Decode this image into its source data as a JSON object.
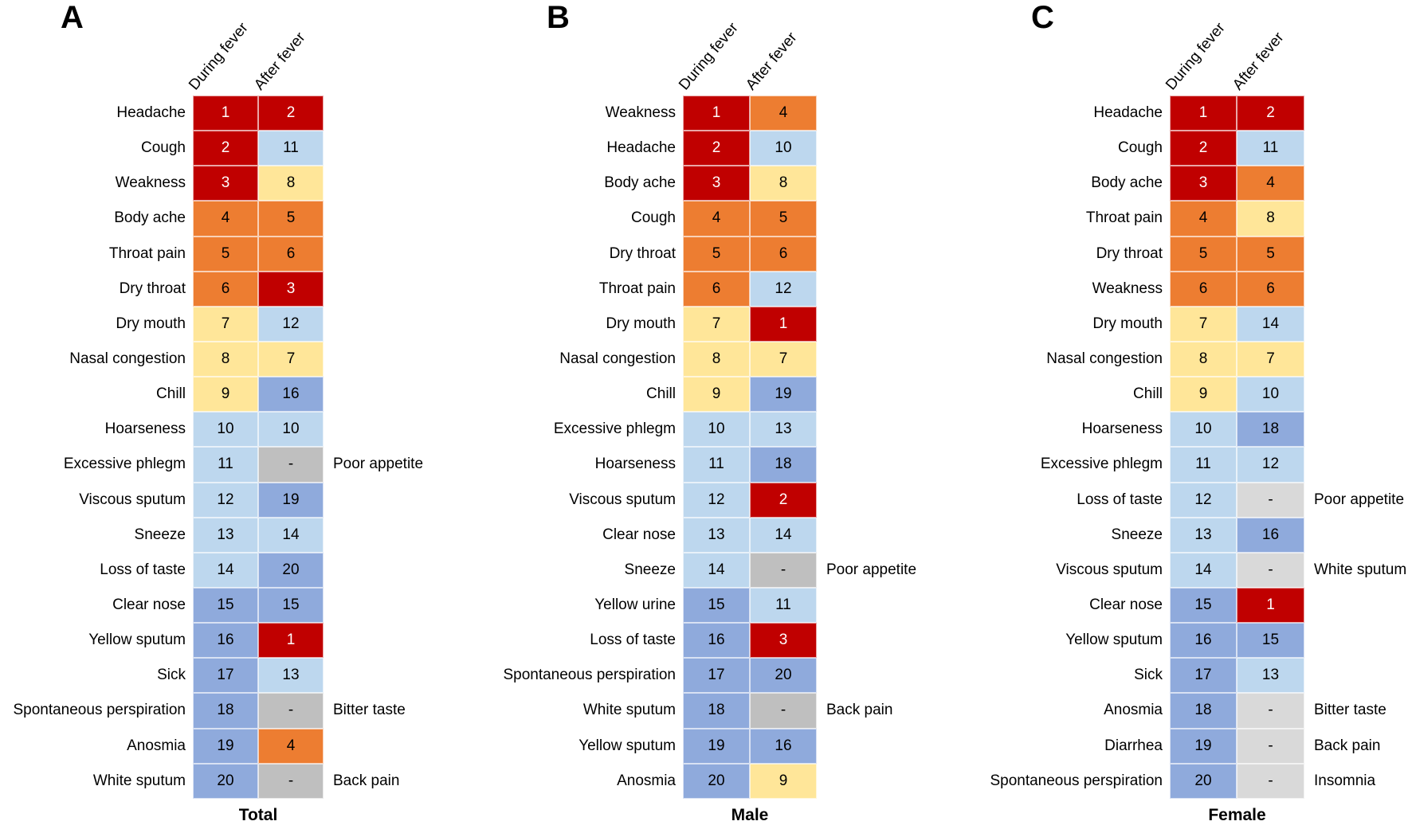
{
  "chart_data": {
    "type": "heatmap",
    "title": "",
    "columns": [
      "During fever",
      "After fever"
    ],
    "legend_position": "none",
    "grid": false,
    "color_key_hex": {
      "red": "#C00000",
      "orange": "#ED7D31",
      "yellow": "#FFE699",
      "light_blue": "#BDD7EE",
      "medium_blue": "#8FAADC",
      "gray": "#BFBFBF",
      "light_gray": "#D9D9D9"
    },
    "panels": [
      {
        "letter": "A",
        "caption": "Total",
        "rows": [
          {
            "symptom": "Headache",
            "during": {
              "rank": 1,
              "color": "red"
            },
            "after": {
              "rank": 2,
              "color": "red"
            },
            "annotation": ""
          },
          {
            "symptom": "Cough",
            "during": {
              "rank": 2,
              "color": "red"
            },
            "after": {
              "rank": 11,
              "color": "light_blue"
            },
            "annotation": ""
          },
          {
            "symptom": "Weakness",
            "during": {
              "rank": 3,
              "color": "red"
            },
            "after": {
              "rank": 8,
              "color": "yellow"
            },
            "annotation": ""
          },
          {
            "symptom": "Body ache",
            "during": {
              "rank": 4,
              "color": "orange"
            },
            "after": {
              "rank": 5,
              "color": "orange"
            },
            "annotation": ""
          },
          {
            "symptom": "Throat pain",
            "during": {
              "rank": 5,
              "color": "orange"
            },
            "after": {
              "rank": 6,
              "color": "orange"
            },
            "annotation": ""
          },
          {
            "symptom": "Dry throat",
            "during": {
              "rank": 6,
              "color": "orange"
            },
            "after": {
              "rank": 3,
              "color": "red"
            },
            "annotation": ""
          },
          {
            "symptom": "Dry mouth",
            "during": {
              "rank": 7,
              "color": "yellow"
            },
            "after": {
              "rank": 12,
              "color": "light_blue"
            },
            "annotation": ""
          },
          {
            "symptom": "Nasal congestion",
            "during": {
              "rank": 8,
              "color": "yellow"
            },
            "after": {
              "rank": 7,
              "color": "yellow"
            },
            "annotation": ""
          },
          {
            "symptom": "Chill",
            "during": {
              "rank": 9,
              "color": "yellow"
            },
            "after": {
              "rank": 16,
              "color": "medium_blue"
            },
            "annotation": ""
          },
          {
            "symptom": "Hoarseness",
            "during": {
              "rank": 10,
              "color": "light_blue"
            },
            "after": {
              "rank": 10,
              "color": "light_blue"
            },
            "annotation": ""
          },
          {
            "symptom": "Excessive phlegm",
            "during": {
              "rank": 11,
              "color": "light_blue"
            },
            "after": {
              "rank": "-",
              "color": "gray"
            },
            "annotation": "Poor appetite"
          },
          {
            "symptom": "Viscous sputum",
            "during": {
              "rank": 12,
              "color": "light_blue"
            },
            "after": {
              "rank": 19,
              "color": "medium_blue"
            },
            "annotation": ""
          },
          {
            "symptom": "Sneeze",
            "during": {
              "rank": 13,
              "color": "light_blue"
            },
            "after": {
              "rank": 14,
              "color": "light_blue"
            },
            "annotation": ""
          },
          {
            "symptom": "Loss of taste",
            "during": {
              "rank": 14,
              "color": "light_blue"
            },
            "after": {
              "rank": 20,
              "color": "medium_blue"
            },
            "annotation": ""
          },
          {
            "symptom": "Clear nose",
            "during": {
              "rank": 15,
              "color": "medium_blue"
            },
            "after": {
              "rank": 15,
              "color": "medium_blue"
            },
            "annotation": ""
          },
          {
            "symptom": "Yellow sputum",
            "during": {
              "rank": 16,
              "color": "medium_blue"
            },
            "after": {
              "rank": 1,
              "color": "red"
            },
            "annotation": ""
          },
          {
            "symptom": "Sick",
            "during": {
              "rank": 17,
              "color": "medium_blue"
            },
            "after": {
              "rank": 13,
              "color": "light_blue"
            },
            "annotation": ""
          },
          {
            "symptom": "Spontaneous perspiration",
            "during": {
              "rank": 18,
              "color": "medium_blue"
            },
            "after": {
              "rank": "-",
              "color": "gray"
            },
            "annotation": "Bitter taste"
          },
          {
            "symptom": "Anosmia",
            "during": {
              "rank": 19,
              "color": "medium_blue"
            },
            "after": {
              "rank": 4,
              "color": "orange"
            },
            "annotation": ""
          },
          {
            "symptom": "White sputum",
            "during": {
              "rank": 20,
              "color": "medium_blue"
            },
            "after": {
              "rank": "-",
              "color": "gray"
            },
            "annotation": "Back pain"
          }
        ]
      },
      {
        "letter": "B",
        "caption": "Male",
        "rows": [
          {
            "symptom": "Weakness",
            "during": {
              "rank": 1,
              "color": "red"
            },
            "after": {
              "rank": 4,
              "color": "orange"
            },
            "annotation": ""
          },
          {
            "symptom": "Headache",
            "during": {
              "rank": 2,
              "color": "red"
            },
            "after": {
              "rank": 10,
              "color": "light_blue"
            },
            "annotation": ""
          },
          {
            "symptom": "Body ache",
            "during": {
              "rank": 3,
              "color": "red"
            },
            "after": {
              "rank": 8,
              "color": "yellow"
            },
            "annotation": ""
          },
          {
            "symptom": "Cough",
            "during": {
              "rank": 4,
              "color": "orange"
            },
            "after": {
              "rank": 5,
              "color": "orange"
            },
            "annotation": ""
          },
          {
            "symptom": "Dry throat",
            "during": {
              "rank": 5,
              "color": "orange"
            },
            "after": {
              "rank": 6,
              "color": "orange"
            },
            "annotation": ""
          },
          {
            "symptom": "Throat pain",
            "during": {
              "rank": 6,
              "color": "orange"
            },
            "after": {
              "rank": 12,
              "color": "light_blue"
            },
            "annotation": ""
          },
          {
            "symptom": "Dry mouth",
            "during": {
              "rank": 7,
              "color": "yellow"
            },
            "after": {
              "rank": 1,
              "color": "red"
            },
            "annotation": ""
          },
          {
            "symptom": "Nasal congestion",
            "during": {
              "rank": 8,
              "color": "yellow"
            },
            "after": {
              "rank": 7,
              "color": "yellow"
            },
            "annotation": ""
          },
          {
            "symptom": "Chill",
            "during": {
              "rank": 9,
              "color": "yellow"
            },
            "after": {
              "rank": 19,
              "color": "medium_blue"
            },
            "annotation": ""
          },
          {
            "symptom": "Excessive phlegm",
            "during": {
              "rank": 10,
              "color": "light_blue"
            },
            "after": {
              "rank": 13,
              "color": "light_blue"
            },
            "annotation": ""
          },
          {
            "symptom": "Hoarseness",
            "during": {
              "rank": 11,
              "color": "light_blue"
            },
            "after": {
              "rank": 18,
              "color": "medium_blue"
            },
            "annotation": ""
          },
          {
            "symptom": "Viscous sputum",
            "during": {
              "rank": 12,
              "color": "light_blue"
            },
            "after": {
              "rank": 2,
              "color": "red"
            },
            "annotation": ""
          },
          {
            "symptom": "Clear nose",
            "during": {
              "rank": 13,
              "color": "light_blue"
            },
            "after": {
              "rank": 14,
              "color": "light_blue"
            },
            "annotation": ""
          },
          {
            "symptom": "Sneeze",
            "during": {
              "rank": 14,
              "color": "light_blue"
            },
            "after": {
              "rank": "-",
              "color": "gray"
            },
            "annotation": "Poor appetite"
          },
          {
            "symptom": "Yellow urine",
            "during": {
              "rank": 15,
              "color": "medium_blue"
            },
            "after": {
              "rank": 11,
              "color": "light_blue"
            },
            "annotation": ""
          },
          {
            "symptom": "Loss of taste",
            "during": {
              "rank": 16,
              "color": "medium_blue"
            },
            "after": {
              "rank": 3,
              "color": "red"
            },
            "annotation": ""
          },
          {
            "symptom": "Spontaneous perspiration",
            "during": {
              "rank": 17,
              "color": "medium_blue"
            },
            "after": {
              "rank": 20,
              "color": "medium_blue"
            },
            "annotation": ""
          },
          {
            "symptom": "White sputum",
            "during": {
              "rank": 18,
              "color": "medium_blue"
            },
            "after": {
              "rank": "-",
              "color": "gray"
            },
            "annotation": "Back pain"
          },
          {
            "symptom": "Yellow sputum",
            "during": {
              "rank": 19,
              "color": "medium_blue"
            },
            "after": {
              "rank": 16,
              "color": "medium_blue"
            },
            "annotation": ""
          },
          {
            "symptom": "Anosmia",
            "during": {
              "rank": 20,
              "color": "medium_blue"
            },
            "after": {
              "rank": 9,
              "color": "yellow"
            },
            "annotation": ""
          }
        ]
      },
      {
        "letter": "C",
        "caption": "Female",
        "rows": [
          {
            "symptom": "Headache",
            "during": {
              "rank": 1,
              "color": "red"
            },
            "after": {
              "rank": 2,
              "color": "red"
            },
            "annotation": ""
          },
          {
            "symptom": "Cough",
            "during": {
              "rank": 2,
              "color": "red"
            },
            "after": {
              "rank": 11,
              "color": "light_blue"
            },
            "annotation": ""
          },
          {
            "symptom": "Body ache",
            "during": {
              "rank": 3,
              "color": "red"
            },
            "after": {
              "rank": 4,
              "color": "orange"
            },
            "annotation": ""
          },
          {
            "symptom": "Throat pain",
            "during": {
              "rank": 4,
              "color": "orange"
            },
            "after": {
              "rank": 8,
              "color": "yellow"
            },
            "annotation": ""
          },
          {
            "symptom": "Dry throat",
            "during": {
              "rank": 5,
              "color": "orange"
            },
            "after": {
              "rank": 5,
              "color": "orange"
            },
            "annotation": ""
          },
          {
            "symptom": "Weakness",
            "during": {
              "rank": 6,
              "color": "orange"
            },
            "after": {
              "rank": 6,
              "color": "orange"
            },
            "annotation": ""
          },
          {
            "symptom": "Dry mouth",
            "during": {
              "rank": 7,
              "color": "yellow"
            },
            "after": {
              "rank": 14,
              "color": "light_blue"
            },
            "annotation": ""
          },
          {
            "symptom": "Nasal congestion",
            "during": {
              "rank": 8,
              "color": "yellow"
            },
            "after": {
              "rank": 7,
              "color": "yellow"
            },
            "annotation": ""
          },
          {
            "symptom": "Chill",
            "during": {
              "rank": 9,
              "color": "yellow"
            },
            "after": {
              "rank": 10,
              "color": "light_blue"
            },
            "annotation": ""
          },
          {
            "symptom": "Hoarseness",
            "during": {
              "rank": 10,
              "color": "light_blue"
            },
            "after": {
              "rank": 18,
              "color": "medium_blue"
            },
            "annotation": ""
          },
          {
            "symptom": "Excessive phlegm",
            "during": {
              "rank": 11,
              "color": "light_blue"
            },
            "after": {
              "rank": 12,
              "color": "light_blue"
            },
            "annotation": ""
          },
          {
            "symptom": "Loss of taste",
            "during": {
              "rank": 12,
              "color": "light_blue"
            },
            "after": {
              "rank": "-",
              "color": "light_gray"
            },
            "annotation": "Poor appetite"
          },
          {
            "symptom": "Sneeze",
            "during": {
              "rank": 13,
              "color": "light_blue"
            },
            "after": {
              "rank": 16,
              "color": "medium_blue"
            },
            "annotation": ""
          },
          {
            "symptom": "Viscous sputum",
            "during": {
              "rank": 14,
              "color": "light_blue"
            },
            "after": {
              "rank": "-",
              "color": "light_gray"
            },
            "annotation": "White sputum"
          },
          {
            "symptom": "Clear nose",
            "during": {
              "rank": 15,
              "color": "medium_blue"
            },
            "after": {
              "rank": 1,
              "color": "red"
            },
            "annotation": ""
          },
          {
            "symptom": "Yellow sputum",
            "during": {
              "rank": 16,
              "color": "medium_blue"
            },
            "after": {
              "rank": 15,
              "color": "medium_blue"
            },
            "annotation": ""
          },
          {
            "symptom": "Sick",
            "during": {
              "rank": 17,
              "color": "medium_blue"
            },
            "after": {
              "rank": 13,
              "color": "light_blue"
            },
            "annotation": ""
          },
          {
            "symptom": "Anosmia",
            "during": {
              "rank": 18,
              "color": "medium_blue"
            },
            "after": {
              "rank": "-",
              "color": "light_gray"
            },
            "annotation": "Bitter taste"
          },
          {
            "symptom": "Diarrhea",
            "during": {
              "rank": 19,
              "color": "medium_blue"
            },
            "after": {
              "rank": "-",
              "color": "light_gray"
            },
            "annotation": "Back pain"
          },
          {
            "symptom": "Spontaneous perspiration",
            "during": {
              "rank": 20,
              "color": "medium_blue"
            },
            "after": {
              "rank": "-",
              "color": "light_gray"
            },
            "annotation": "Insomnia"
          }
        ]
      }
    ]
  }
}
